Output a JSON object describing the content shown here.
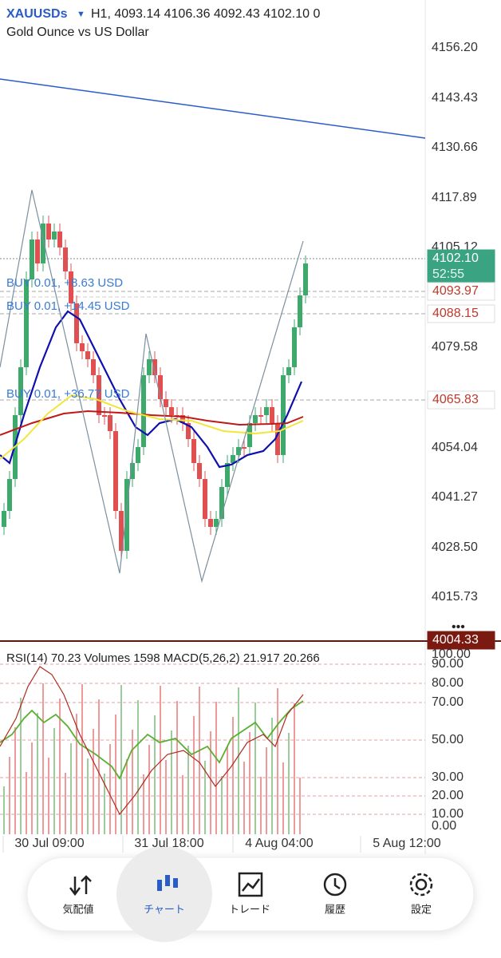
{
  "header": {
    "symbol": "XAUUSDs",
    "quote": "H1, 4093.14 4106.36 4092.43 4102.10 0",
    "description": "Gold Ounce vs US Dollar"
  },
  "price_axis": [
    "4156.20",
    "4143.43",
    "4130.66",
    "4117.89",
    "4105.12",
    "4079.58",
    "4054.04",
    "4041.27",
    "4028.50",
    "4015.73"
  ],
  "price_tags": [
    {
      "price": "4102.10",
      "countdown": "52:55"
    },
    {
      "price": "4093.97"
    },
    {
      "price": "4088.15"
    },
    {
      "price": "4065.83"
    },
    {
      "price": "4004.33"
    }
  ],
  "positions": [
    "BUY 0.01, +8.63 USD",
    "BUY 0.01, +14.45 USD",
    "BUY 0.01, +36.77 USD"
  ],
  "indicator_header": "RSI(14) 70.23 Volumes 1598 MACD(5,26,2) 21.917 20.266",
  "indicator_axis": [
    "100.00",
    "90.00",
    "80.00",
    "70.00",
    "50.00",
    "30.00",
    "20.00",
    "10.00",
    "0.00"
  ],
  "time_axis": [
    "30 Jul 09:00",
    "31 Jul 18:00",
    "4 Aug 04:00",
    "5 Aug 12:00"
  ],
  "nav": [
    "気配値",
    "チャート",
    "トレード",
    "履歴",
    "設定"
  ]
}
